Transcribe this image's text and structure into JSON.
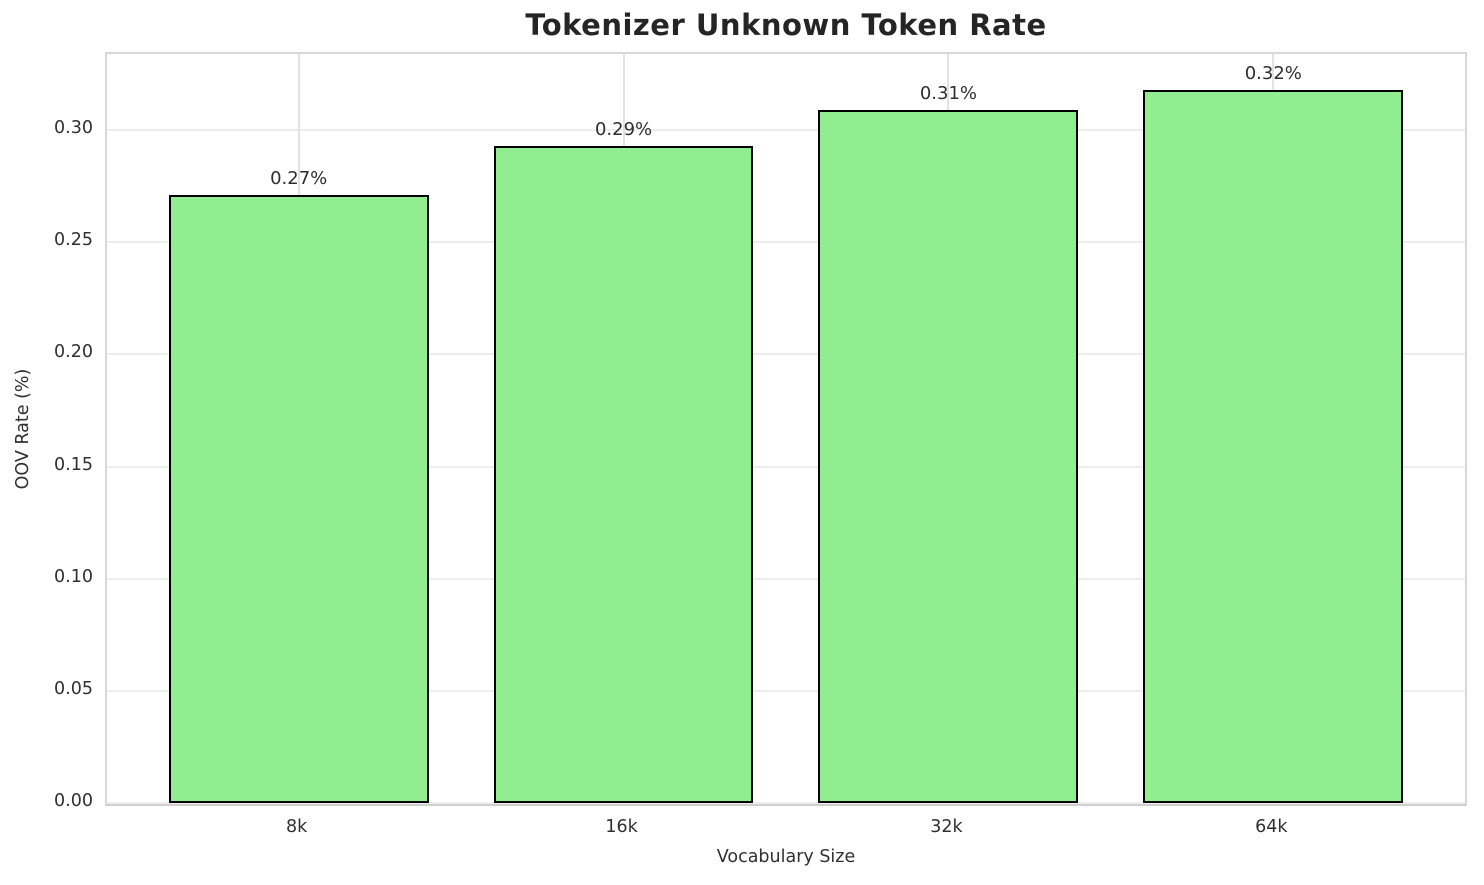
{
  "chart_data": {
    "type": "bar",
    "title": "Tokenizer Unknown Token Rate",
    "xlabel": "Vocabulary Size",
    "ylabel": "OOV Rate (%)",
    "categories": [
      "8k",
      "16k",
      "32k",
      "64k"
    ],
    "values": [
      0.271,
      0.293,
      0.309,
      0.318
    ],
    "bar_labels": [
      "0.27%",
      "0.29%",
      "0.31%",
      "0.32%"
    ],
    "ylim": [
      0,
      0.334
    ],
    "yticks": [
      0.0,
      0.05,
      0.1,
      0.15,
      0.2,
      0.25,
      0.3
    ],
    "ytick_labels": [
      "0.00",
      "0.05",
      "0.10",
      "0.15",
      "0.20",
      "0.25",
      "0.30"
    ],
    "grid": true,
    "legend": null,
    "bar_color": "#90EE90",
    "bar_edge_color": "#000000",
    "grid_color": "#ededed",
    "background": "#ffffff"
  }
}
